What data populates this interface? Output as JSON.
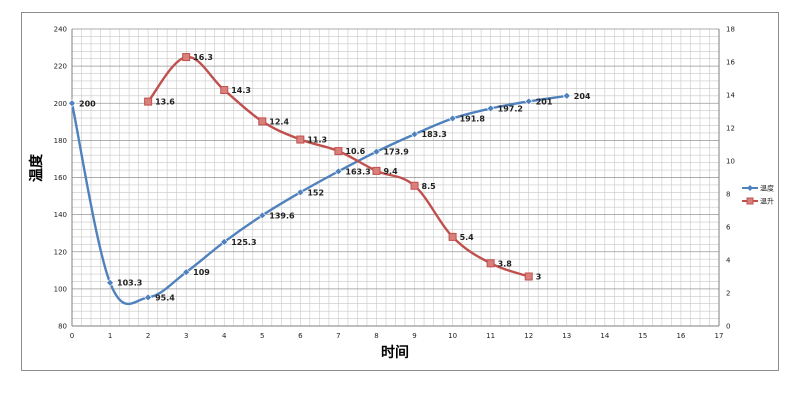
{
  "chart_data": {
    "type": "line",
    "title": "",
    "xlabel": "时间",
    "ylabel": "温度",
    "xlim": [
      0,
      17
    ],
    "ylim": [
      80,
      240
    ],
    "y2lim": [
      0,
      18
    ],
    "x_ticks": [
      0,
      1,
      2,
      3,
      4,
      5,
      6,
      7,
      8,
      9,
      10,
      11,
      12,
      13,
      14,
      15,
      16,
      17
    ],
    "y_ticks": [
      80,
      100,
      120,
      140,
      160,
      180,
      200,
      220,
      240
    ],
    "y2_ticks": [
      0,
      2,
      4,
      6,
      8,
      10,
      12,
      14,
      16,
      18
    ],
    "grid": true,
    "legend_position": "right",
    "series": [
      {
        "name": "温度",
        "axis": "left",
        "color": "#4f81bd",
        "marker": "diamond",
        "x": [
          0,
          1,
          2,
          3,
          4,
          5,
          6,
          7,
          8,
          9,
          10,
          11,
          12,
          13
        ],
        "values": [
          200,
          103.3,
          95.4,
          109,
          125.3,
          139.6,
          152,
          163.3,
          173.9,
          183.3,
          191.8,
          197.2,
          201,
          204
        ],
        "labels": [
          "200",
          "103.3",
          "95.4",
          "109",
          "125.3",
          "139.6",
          "152",
          "163.3",
          "173.9",
          "183.3",
          "191.8",
          "197.2",
          "201",
          "204"
        ]
      },
      {
        "name": "温升",
        "axis": "right",
        "color": "#c0504d",
        "marker": "square",
        "x": [
          2,
          3,
          4,
          5,
          6,
          7,
          8,
          9,
          10,
          11,
          12
        ],
        "values": [
          13.6,
          16.3,
          14.3,
          12.4,
          11.3,
          10.6,
          9.4,
          8.5,
          5.4,
          3.8,
          3
        ],
        "labels": [
          "13.6",
          "16.3",
          "14.3",
          "12.4",
          "11.3",
          "10.6",
          "9.4",
          "8.5",
          "5.4",
          "3.8",
          "3"
        ]
      }
    ]
  }
}
